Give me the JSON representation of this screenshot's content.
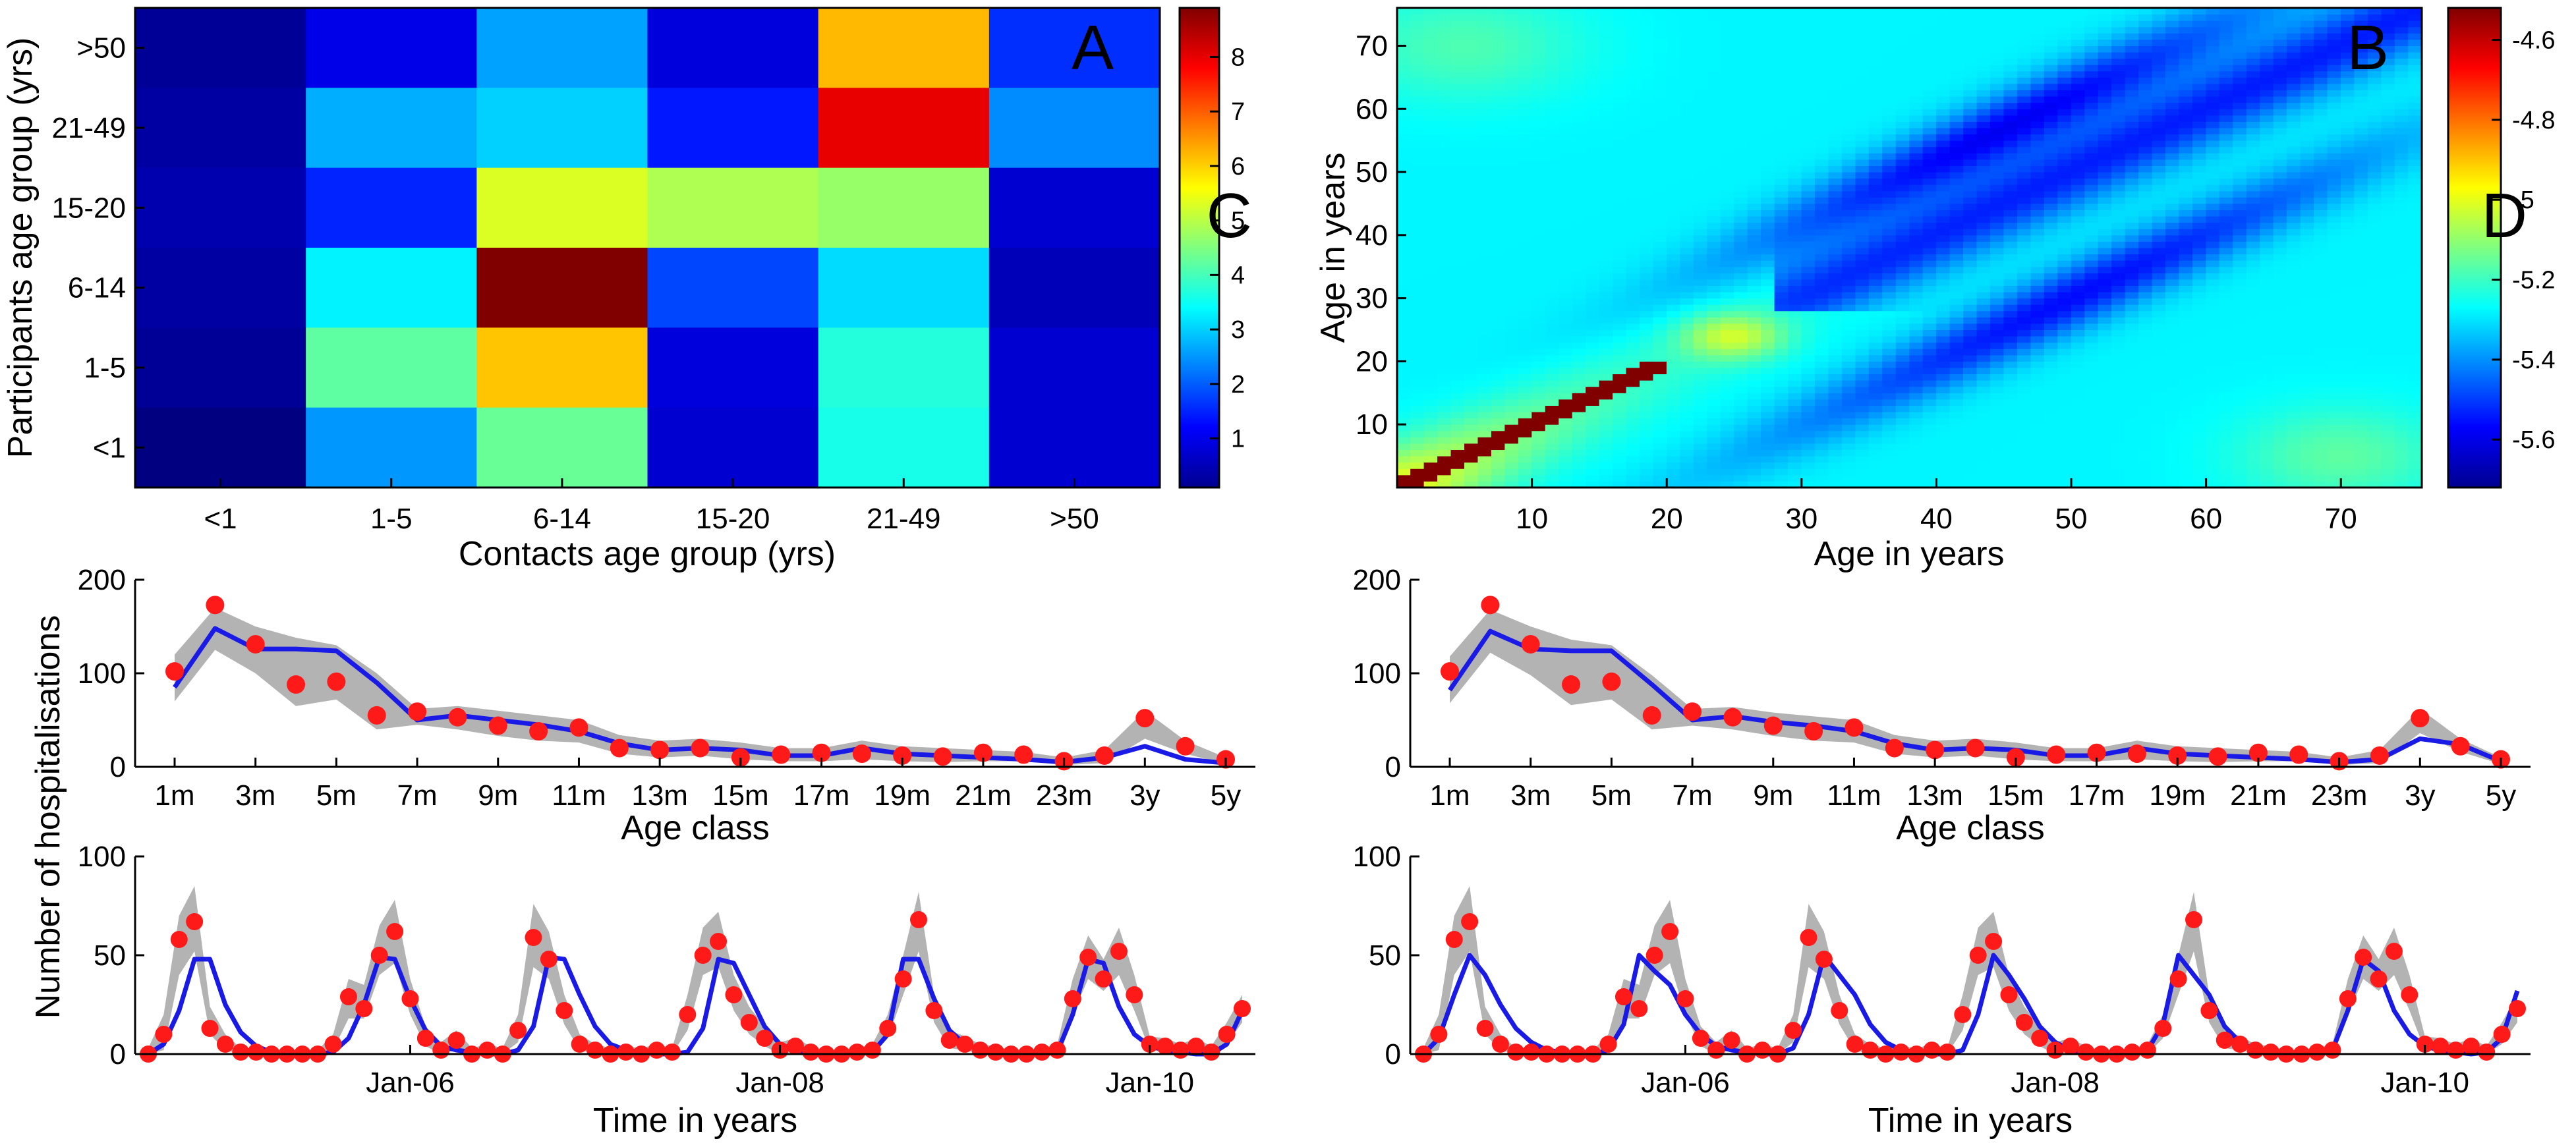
{
  "chart_data": [
    {
      "panel": "A",
      "type": "heatmap",
      "xlabel": "Contacts age group (yrs)",
      "ylabel": "Participants age group (yrs)",
      "x_categories": [
        "<1",
        "1-5",
        "6-14",
        "15-20",
        "21-49",
        ">50"
      ],
      "y_categories": [
        ">50",
        "21-49",
        "15-20",
        "6-14",
        "1-5",
        "<1"
      ],
      "values": [
        [
          0.3,
          1.0,
          2.6,
          0.9,
          6.2,
          1.6
        ],
        [
          0.4,
          2.7,
          3.0,
          1.4,
          8.0,
          2.4
        ],
        [
          0.5,
          1.5,
          5.3,
          4.9,
          4.7,
          0.8
        ],
        [
          0.4,
          3.3,
          8.9,
          1.8,
          3.1,
          0.6
        ],
        [
          0.3,
          4.2,
          6.1,
          0.9,
          3.7,
          0.8
        ],
        [
          0.1,
          2.5,
          4.3,
          0.8,
          3.6,
          0.8
        ]
      ],
      "colorbar_ticks": [
        "1",
        "2",
        "3",
        "4",
        "5",
        "6",
        "7",
        "8"
      ],
      "color_range": [
        0.1,
        8.9
      ]
    },
    {
      "panel": "B",
      "type": "heatmap",
      "xlabel": "Age in years",
      "ylabel": "Age in years",
      "x_ticks": [
        "10",
        "20",
        "30",
        "40",
        "50",
        "60",
        "70"
      ],
      "y_ticks": [
        "10",
        "20",
        "30",
        "40",
        "50",
        "60",
        "70"
      ],
      "xlim": [
        0,
        76
      ],
      "ylim": [
        0,
        76
      ],
      "colorbar_ticks": [
        "-5.6",
        "-5.4",
        "-5.2",
        "-5",
        "-4.8",
        "-4.6"
      ],
      "color_range": [
        -5.72,
        -4.52
      ]
    },
    {
      "panel": "C",
      "type": "line",
      "xlabel": "Age class",
      "ylabel": "Number of hospitalisations",
      "x_ticklabels": [
        "1m",
        "3m",
        "5m",
        "7m",
        "9m",
        "11m",
        "13m",
        "15m",
        "17m",
        "19m",
        "21m",
        "23m",
        "3y",
        "5y"
      ],
      "ylim": [
        0,
        200
      ],
      "y_ticks": [
        "0",
        "100",
        "200"
      ],
      "observed": [
        102,
        173,
        131,
        88,
        91,
        55,
        59,
        53,
        44,
        38,
        42,
        20,
        18,
        20,
        10,
        13,
        15,
        14,
        12,
        11,
        15,
        13,
        6,
        12,
        52,
        22,
        8
      ],
      "model": [
        85,
        148,
        126,
        126,
        124,
        90,
        50,
        55,
        50,
        45,
        38,
        25,
        18,
        20,
        18,
        12,
        12,
        20,
        14,
        12,
        10,
        8,
        5,
        10,
        22,
        8,
        4
      ],
      "band_low": [
        70,
        125,
        100,
        65,
        72,
        40,
        45,
        40,
        33,
        28,
        26,
        14,
        10,
        12,
        8,
        6,
        6,
        8,
        6,
        5,
        6,
        6,
        2,
        4,
        30,
        14,
        3
      ],
      "band_high": [
        120,
        170,
        150,
        138,
        130,
        100,
        62,
        65,
        60,
        55,
        50,
        34,
        28,
        30,
        26,
        20,
        20,
        28,
        22,
        20,
        18,
        16,
        10,
        18,
        60,
        28,
        10
      ]
    },
    {
      "panel": "D",
      "type": "line",
      "xlabel": "Age class",
      "ylabel": "",
      "x_ticklabels": [
        "1m",
        "3m",
        "5m",
        "7m",
        "9m",
        "11m",
        "13m",
        "15m",
        "17m",
        "19m",
        "21m",
        "23m",
        "3y",
        "5y"
      ],
      "ylim": [
        0,
        200
      ],
      "y_ticks": [
        "0",
        "100",
        "200"
      ],
      "observed": [
        102,
        173,
        131,
        88,
        91,
        55,
        59,
        53,
        44,
        38,
        42,
        20,
        18,
        20,
        10,
        13,
        15,
        14,
        12,
        11,
        15,
        13,
        6,
        12,
        52,
        22,
        8
      ],
      "model": [
        82,
        145,
        126,
        124,
        124,
        88,
        50,
        54,
        48,
        44,
        38,
        25,
        18,
        20,
        18,
        12,
        12,
        20,
        14,
        12,
        10,
        8,
        5,
        8,
        30,
        24,
        6
      ],
      "band_low": [
        68,
        122,
        98,
        66,
        72,
        40,
        44,
        40,
        33,
        28,
        26,
        14,
        10,
        12,
        8,
        6,
        6,
        8,
        6,
        5,
        6,
        6,
        2,
        4,
        36,
        16,
        3
      ],
      "band_high": [
        118,
        168,
        150,
        136,
        130,
        98,
        62,
        64,
        58,
        54,
        50,
        34,
        28,
        30,
        26,
        20,
        20,
        28,
        22,
        20,
        18,
        16,
        10,
        18,
        62,
        30,
        10
      ]
    },
    {
      "panel": "bottom-left",
      "type": "line",
      "xlabel": "Time in years",
      "ylabel": "",
      "x_ticklabels": [
        "Jan-06",
        "Jan-08",
        "Jan-10"
      ],
      "x_tick_months": [
        17,
        41,
        65
      ],
      "ylim": [
        0,
        100
      ],
      "y_ticks": [
        "0",
        "50",
        "100"
      ],
      "observed": [
        0,
        10,
        58,
        67,
        13,
        5,
        1,
        1,
        0,
        0,
        0,
        0,
        5,
        29,
        23,
        50,
        62,
        28,
        8,
        2,
        7,
        0,
        2,
        0,
        12,
        59,
        48,
        22,
        5,
        2,
        0,
        1,
        0,
        2,
        1,
        20,
        50,
        57,
        30,
        16,
        8,
        2,
        4,
        1,
        0,
        0,
        1,
        2,
        13,
        38,
        68,
        22,
        7,
        5,
        2,
        1,
        0,
        0,
        1,
        2,
        28,
        49,
        38,
        52,
        30,
        5,
        4,
        2,
        4,
        1,
        10,
        23
      ],
      "model": [
        0,
        5,
        22,
        48,
        48,
        25,
        11,
        4,
        1,
        0,
        0,
        0,
        1,
        8,
        25,
        49,
        48,
        28,
        12,
        4,
        2,
        1,
        0,
        0,
        2,
        14,
        49,
        48,
        30,
        14,
        5,
        2,
        1,
        0,
        0,
        1,
        13,
        48,
        46,
        30,
        14,
        5,
        2,
        1,
        0,
        0,
        0,
        1,
        10,
        48,
        48,
        28,
        12,
        5,
        2,
        1,
        0,
        0,
        0,
        1,
        20,
        48,
        46,
        24,
        10,
        4,
        2,
        1,
        0,
        0,
        5,
        22
      ],
      "band_low": [
        0,
        2,
        40,
        52,
        10,
        2,
        0,
        0,
        0,
        0,
        0,
        0,
        2,
        18,
        18,
        40,
        46,
        20,
        4,
        0,
        2,
        0,
        0,
        0,
        6,
        44,
        38,
        15,
        2,
        0,
        0,
        0,
        0,
        0,
        0,
        12,
        40,
        44,
        22,
        10,
        4,
        0,
        1,
        0,
        0,
        0,
        0,
        0,
        8,
        30,
        52,
        16,
        3,
        2,
        0,
        0,
        0,
        0,
        0,
        0,
        20,
        38,
        32,
        40,
        22,
        2,
        1,
        0,
        1,
        0,
        5,
        16
      ],
      "band_high": [
        3,
        20,
        70,
        85,
        24,
        10,
        3,
        3,
        2,
        2,
        2,
        2,
        10,
        38,
        35,
        65,
        78,
        38,
        14,
        6,
        12,
        3,
        5,
        3,
        20,
        76,
        62,
        30,
        10,
        5,
        3,
        4,
        3,
        5,
        3,
        30,
        64,
        72,
        40,
        24,
        14,
        6,
        8,
        4,
        2,
        2,
        3,
        5,
        20,
        50,
        82,
        30,
        12,
        9,
        5,
        4,
        2,
        2,
        3,
        5,
        38,
        60,
        48,
        64,
        40,
        9,
        8,
        5,
        8,
        4,
        16,
        30
      ]
    },
    {
      "panel": "bottom-right",
      "type": "line",
      "xlabel": "Time in years",
      "ylabel": "",
      "x_ticklabels": [
        "Jan-06",
        "Jan-08",
        "Jan-10"
      ],
      "x_tick_months": [
        17,
        41,
        65
      ],
      "ylim": [
        0,
        100
      ],
      "y_ticks": [
        "0",
        "50",
        "100"
      ],
      "observed": [
        0,
        10,
        58,
        67,
        13,
        5,
        1,
        1,
        0,
        0,
        0,
        0,
        5,
        29,
        23,
        50,
        62,
        28,
        8,
        2,
        7,
        0,
        2,
        0,
        12,
        59,
        48,
        22,
        5,
        2,
        0,
        1,
        0,
        2,
        1,
        20,
        50,
        57,
        30,
        16,
        8,
        2,
        4,
        1,
        0,
        0,
        1,
        2,
        13,
        38,
        68,
        22,
        7,
        5,
        2,
        1,
        0,
        0,
        1,
        2,
        28,
        49,
        38,
        52,
        30,
        5,
        4,
        2,
        4,
        1,
        10,
        23
      ],
      "model": [
        0,
        8,
        30,
        50,
        40,
        25,
        13,
        6,
        2,
        1,
        0,
        0,
        2,
        15,
        50,
        42,
        35,
        20,
        10,
        4,
        2,
        1,
        0,
        0,
        3,
        20,
        50,
        40,
        30,
        15,
        6,
        2,
        1,
        0,
        0,
        2,
        20,
        50,
        40,
        28,
        14,
        6,
        2,
        1,
        0,
        0,
        1,
        2,
        15,
        50,
        40,
        30,
        14,
        6,
        2,
        1,
        0,
        0,
        0,
        2,
        22,
        48,
        42,
        22,
        10,
        4,
        2,
        1,
        0,
        1,
        8,
        32
      ],
      "band_low": [
        0,
        2,
        40,
        52,
        10,
        2,
        0,
        0,
        0,
        0,
        0,
        0,
        2,
        18,
        18,
        40,
        46,
        20,
        4,
        0,
        2,
        0,
        0,
        0,
        6,
        44,
        38,
        15,
        2,
        0,
        0,
        0,
        0,
        0,
        0,
        12,
        40,
        44,
        22,
        10,
        4,
        0,
        1,
        0,
        0,
        0,
        0,
        0,
        8,
        30,
        52,
        16,
        3,
        2,
        0,
        0,
        0,
        0,
        0,
        0,
        20,
        38,
        32,
        40,
        22,
        2,
        1,
        0,
        1,
        0,
        5,
        16
      ],
      "band_high": [
        3,
        20,
        70,
        85,
        24,
        10,
        3,
        3,
        2,
        2,
        2,
        2,
        10,
        38,
        35,
        65,
        78,
        38,
        14,
        6,
        12,
        3,
        5,
        3,
        20,
        76,
        62,
        30,
        10,
        5,
        3,
        4,
        3,
        5,
        3,
        30,
        64,
        72,
        40,
        24,
        14,
        6,
        8,
        4,
        2,
        2,
        3,
        5,
        20,
        50,
        82,
        30,
        12,
        9,
        5,
        4,
        2,
        2,
        3,
        5,
        38,
        60,
        48,
        64,
        40,
        9,
        8,
        5,
        8,
        4,
        16,
        30
      ]
    }
  ],
  "shared_ylabel": "Number of hospitalisations",
  "panel_letters": {
    "a": "A",
    "b": "B",
    "c": "C",
    "d": "D"
  },
  "colors": {
    "observed": "#ff1a1a",
    "model": "#1a1ae6",
    "band": "#b3b3b3",
    "axis": "#000000"
  }
}
